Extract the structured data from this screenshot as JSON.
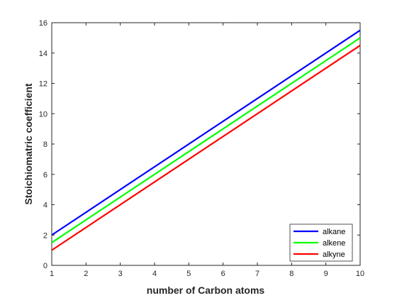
{
  "chart_data": {
    "type": "line",
    "title": "",
    "xlabel": "number of Carbon atoms",
    "ylabel": "Stoichiomatric coefficient",
    "xlim": [
      1,
      10
    ],
    "ylim": [
      0,
      16
    ],
    "xticks": [
      "1",
      "2",
      "3",
      "4",
      "5",
      "6",
      "7",
      "8",
      "9",
      "10"
    ],
    "yticks": [
      "0",
      "2",
      "4",
      "6",
      "8",
      "10",
      "12",
      "14",
      "16"
    ],
    "grid": false,
    "legend_position": "bottom-right",
    "series": [
      {
        "name": "alkane",
        "color": "#0000ff",
        "x": [
          1,
          10
        ],
        "y": [
          2.0,
          15.5
        ]
      },
      {
        "name": "alkene",
        "color": "#00ff00",
        "x": [
          1,
          10
        ],
        "y": [
          1.5,
          15.0
        ]
      },
      {
        "name": "alkyne",
        "color": "#ff0000",
        "x": [
          1,
          10
        ],
        "y": [
          1.0,
          14.5
        ]
      }
    ]
  }
}
